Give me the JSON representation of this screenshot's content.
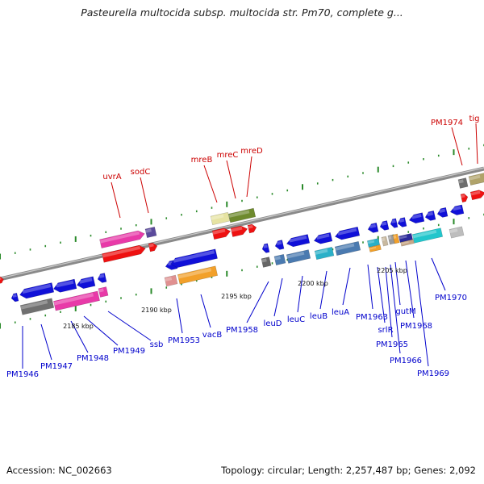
{
  "title": "Pasteurella multocida subsp. multocida str. Pm70, complete g...",
  "footer": {
    "accession": "Accession: NC_002663",
    "topology": "Topology: circular; Length: 2,257,487 bp; Genes: 2,092"
  },
  "colors": {
    "upper_labels": "#cc0000",
    "lower_labels": "#0000cc",
    "backbone": "#888888",
    "ticks": "#2a8a2a"
  },
  "upper_labels": [
    "uvrA",
    "sodC",
    "mreB",
    "mreC",
    "mreD",
    "PM1974",
    "tig"
  ],
  "lower_labels": [
    "PM1946",
    "PM1947",
    "PM1948",
    "PM1949",
    "ssb",
    "PM1953",
    "vacB",
    "PM1958",
    "leuD",
    "leuC",
    "leuB",
    "leuA",
    "PM1963",
    "srlR",
    "PM1965",
    "PM1966",
    "gutM",
    "PM1968",
    "PM1969",
    "PM1970"
  ],
  "scale_labels": [
    "2185 kbp",
    "2190 kbp",
    "2195 kbp",
    "2200 kbp",
    "2205 kbp"
  ]
}
